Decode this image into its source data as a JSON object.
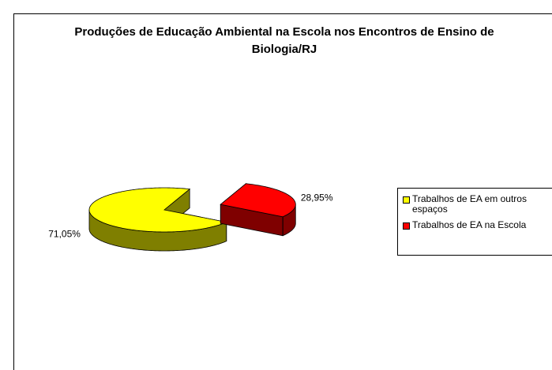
{
  "chart_data": {
    "type": "pie",
    "title": "Produções de Educação Ambiental na Escola nos Encontros de Ensino de Biologia/RJ",
    "categories": [
      "Trabalhos de EA em outros espaços",
      "Trabalhos de EA na Escola"
    ],
    "values": [
      71.05,
      28.95
    ],
    "value_labels": [
      "71,05%",
      "28,95%"
    ],
    "colors": [
      "#ffff00",
      "#ff0000"
    ],
    "three_d": true,
    "legend": "right"
  }
}
